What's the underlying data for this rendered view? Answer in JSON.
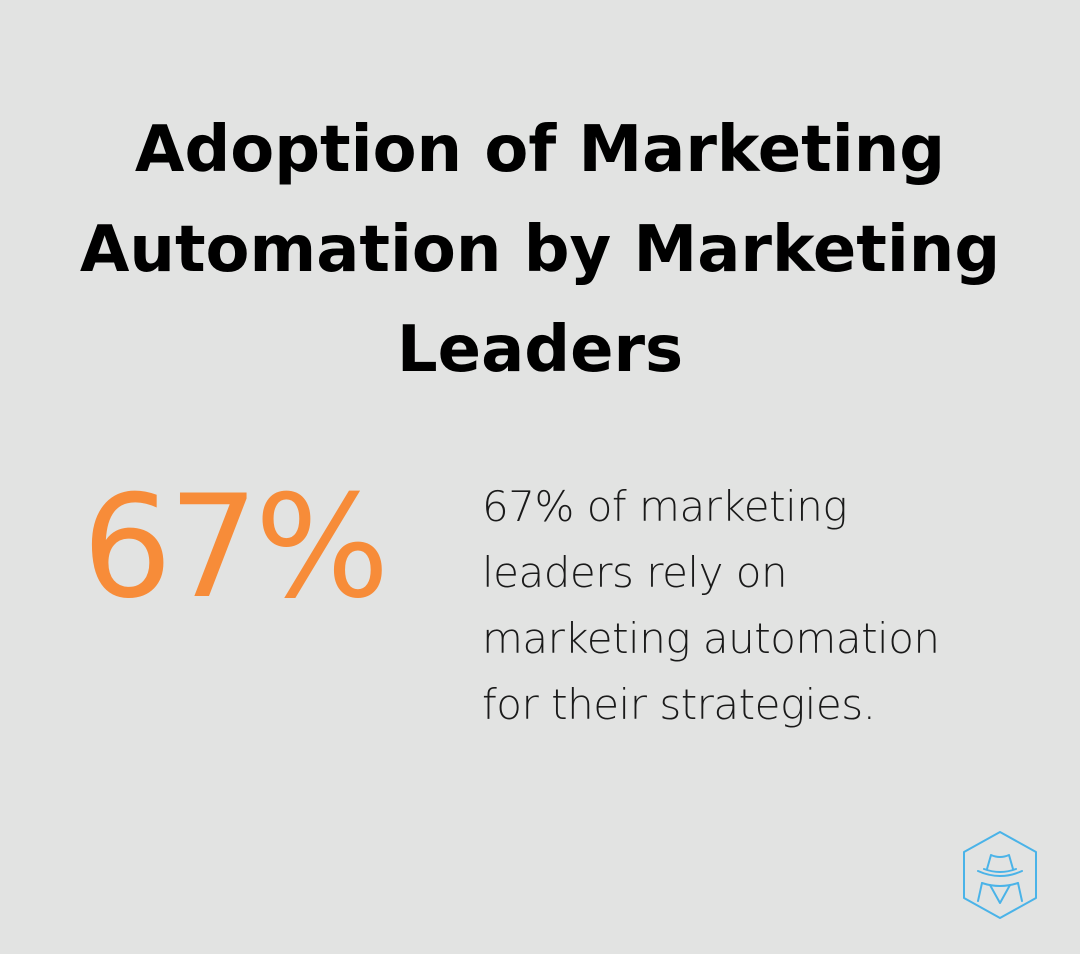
{
  "infographic": {
    "title": "Adoption of Marketing Automation by Marketing Leaders",
    "stat_value": "67%",
    "stat_description": "67% of marketing leaders rely on marketing automation for their strategies."
  },
  "theme": {
    "background": "#e2e3e2",
    "accent": "#f78c39",
    "text": "#000000",
    "logo_color": "#4ab3e8"
  },
  "logo": {
    "icon": "hexagon-detective-icon"
  }
}
